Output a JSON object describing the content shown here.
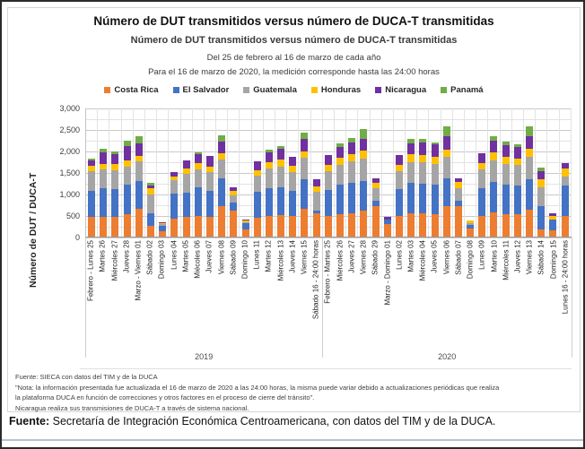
{
  "chart": {
    "title": "Número de DUT transmitidos versus número de DUCA-T transmitidas",
    "subtitle": "Número de DUT transmitidos versus número de DUCA-T transmitidas",
    "subtitle2": "Del 25 de febrero al 16 de marzo de cada año",
    "subtitle3": "Para el 16 de marzo de 2020, la medición corresponde hasta las 24:00 horas",
    "source_note": "Fuente: SIECA con datos del TIM y de la DUCA",
    "note_line1": "\"Nota: la información presentada fue actualizada el 16 de marzo de 2020 a las 24:00 horas, la misma puede variar debido a actualizaciones periódicas que realiza",
    "note_line2": "la plataforma DUCA en función de correcciones y otros factores en el proceso de cierre del tránsito\".",
    "note_line3": "Nicaragua realiza sus transmisiones de DUCA-T a través de sistema nacional."
  },
  "caption": {
    "bold": "Fuente:",
    "text": " Secretaría de Integración Económica Centroamericana, con datos del TIM y de la DUCA."
  },
  "chart_data": {
    "type": "bar",
    "stacked": true,
    "title": "Número de DUT transmitidos versus número de DUCA-T transmitidas",
    "xlabel": "",
    "ylabel": "Número de DUT / DUCA-T",
    "ylim": [
      0,
      3000
    ],
    "y_tick_interval": 500,
    "y_minor_grid_interval": 250,
    "y_tick_labels": [
      "3,000",
      "2,500",
      "2,000",
      "1,500",
      "1,000",
      "500",
      "0"
    ],
    "grid": true,
    "legend_position": "top",
    "groups": [
      {
        "label": "2019",
        "start": 0,
        "count": 20
      },
      {
        "label": "2020",
        "start": 20,
        "count": 21
      }
    ],
    "categories": [
      "Febrero - Lunes 25",
      "Martes 26",
      "Miércoles 27",
      "Jueves 28",
      "Marzo - Viernes 01",
      "Sábado 02",
      "Domingo 03",
      "Lunes 04",
      "Martes 05",
      "Miécoles 06",
      "Jueves 07",
      "Viernes 08",
      "Sábado 09",
      "Domingo 10",
      "Lunes 11",
      "Martes 12",
      "Miércoles 13",
      "Jueves 14",
      "Viernes 15",
      "Sábado 16 - 24:00 horas",
      "Febrero - Martes 25",
      "Miércoles 26",
      "Jueves 27",
      "Viernes 28",
      "Sábado 29",
      "Marzo - Domingo 01",
      "Lunes 02",
      "Martes 03",
      "Miércoles 04",
      "Jueves 05",
      "Viernes 06",
      "Sábado 07",
      "Domingo 08",
      "Lunes 09",
      "Martes 10",
      "Miércoles 11",
      "Jueves 12",
      "Viernes 13",
      "Sábado 14",
      "Domingo 15",
      "Lunes 16 - 24:00 horas"
    ],
    "series": [
      {
        "name": "Costa Rica",
        "color": "#ED7D31",
        "values": [
          465,
          465,
          450,
          530,
          650,
          255,
          130,
          420,
          450,
          490,
          460,
          700,
          600,
          160,
          440,
          480,
          500,
          470,
          650,
          550,
          470,
          520,
          550,
          600,
          700,
          290,
          480,
          550,
          540,
          530,
          700,
          700,
          180,
          490,
          560,
          530,
          520,
          620,
          170,
          150,
          485
        ]
      },
      {
        "name": "El Salvador",
        "color": "#4472C4",
        "values": [
          600,
          660,
          650,
          690,
          645,
          280,
          130,
          580,
          580,
          650,
          600,
          660,
          200,
          150,
          600,
          640,
          650,
          600,
          680,
          60,
          620,
          680,
          700,
          700,
          140,
          105,
          620,
          700,
          690,
          680,
          645,
          140,
          90,
          640,
          720,
          690,
          670,
          720,
          540,
          240,
          695
        ]
      },
      {
        "name": "Guatemala",
        "color": "#A5A5A5",
        "values": [
          455,
          430,
          440,
          400,
          450,
          450,
          30,
          310,
          430,
          420,
          440,
          440,
          150,
          30,
          380,
          460,
          480,
          430,
          500,
          430,
          430,
          470,
          500,
          520,
          290,
          0,
          420,
          490,
          500,
          480,
          500,
          290,
          40,
          430,
          500,
          480,
          470,
          520,
          430,
          0,
          220
        ]
      },
      {
        "name": "Honduras",
        "color": "#FFC000",
        "values": [
          120,
          140,
          140,
          155,
          140,
          140,
          20,
          90,
          120,
          140,
          130,
          140,
          120,
          30,
          120,
          150,
          160,
          140,
          160,
          130,
          140,
          160,
          170,
          180,
          125,
          0,
          150,
          170,
          170,
          170,
          175,
          140,
          70,
          160,
          170,
          160,
          160,
          180,
          195,
          100,
          175
        ]
      },
      {
        "name": "Nicaragua",
        "color": "#7030A0",
        "values": [
          140,
          260,
          230,
          330,
          290,
          75,
          20,
          100,
          200,
          210,
          240,
          280,
          70,
          20,
          210,
          230,
          250,
          210,
          280,
          160,
          240,
          260,
          270,
          280,
          95,
          65,
          230,
          260,
          290,
          280,
          310,
          80,
          0,
          230,
          280,
          270,
          260,
          300,
          195,
          60,
          140
        ]
      },
      {
        "name": "Panamá",
        "color": "#70AD47",
        "values": [
          40,
          95,
          70,
          135,
          165,
          50,
          0,
          0,
          0,
          50,
          0,
          130,
          0,
          0,
          0,
          70,
          70,
          0,
          150,
          0,
          0,
          70,
          110,
          220,
          0,
          0,
          0,
          110,
          80,
          60,
          240,
          0,
          0,
          0,
          110,
          70,
          70,
          230,
          80,
          0,
          0
        ]
      }
    ]
  }
}
